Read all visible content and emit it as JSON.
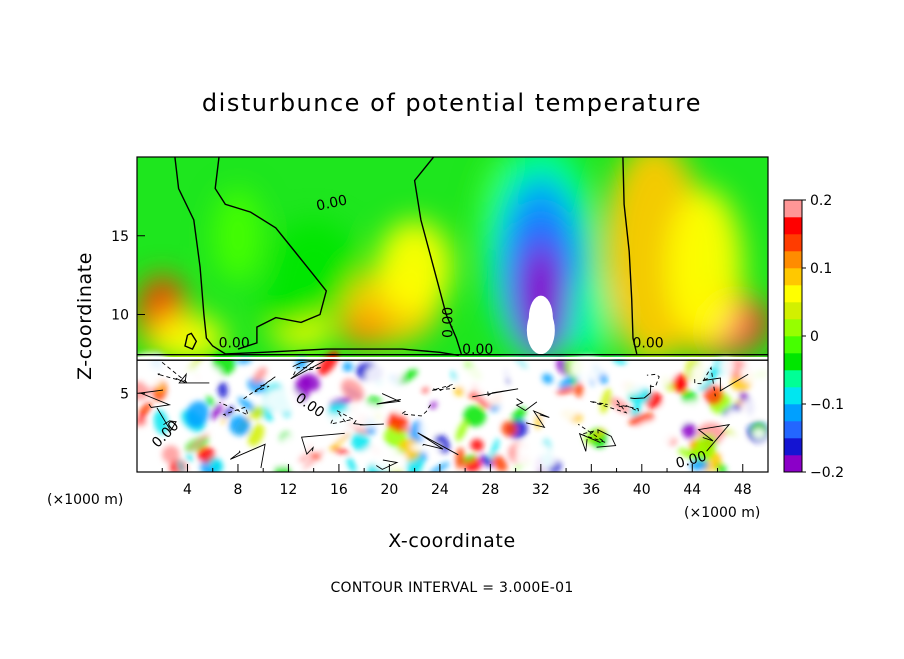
{
  "chart_data": {
    "type": "heatmap",
    "title": "disturbunce of potential temperature",
    "xlabel": "X-coordinate",
    "ylabel": "Z-coordinate",
    "x_unit": "(×1000 m)",
    "z_unit": "(×1000 m)",
    "xlim": [
      0,
      50
    ],
    "ylim": [
      0,
      20
    ],
    "x_ticks": [
      "4",
      "8",
      "12",
      "16",
      "20",
      "24",
      "28",
      "32",
      "36",
      "40",
      "44",
      "48"
    ],
    "y_ticks": [
      "5",
      "10",
      "15"
    ],
    "interface_height": 7.3,
    "colorbar": {
      "range": [
        -0.2,
        0.2
      ],
      "ticks": [
        "0.2",
        "0.1",
        "0",
        "−0.1",
        "−0.2"
      ],
      "colors": [
        "#8b00c8",
        "#1414d2",
        "#2366ff",
        "#00a0ff",
        "#00e6f0",
        "#00ff96",
        "#00e600",
        "#46ff00",
        "#96ff00",
        "#d2f000",
        "#ffff00",
        "#ffc800",
        "#ff8c00",
        "#ff3c00",
        "#ff0000",
        "#ff9696"
      ]
    },
    "contour_interval": "CONTOUR INTERVAL = 3.000E-01",
    "contour_labels": [
      "0.00",
      "0.00",
      "0.00",
      "0.00",
      "0.00",
      "0.00",
      "0.00",
      "0.00"
    ],
    "upper_features": [
      {
        "kind": "cold_plume",
        "x_center": 32,
        "z_top": 20,
        "peak": -0.2
      },
      {
        "kind": "warm_region",
        "x_center": 47,
        "z_center": 9,
        "peak": 0.15
      },
      {
        "kind": "warm_edge",
        "x_center": 0.5,
        "z_center": 9,
        "peak": 0.18
      },
      {
        "kind": "warm_region",
        "x_center": 20,
        "z_center": 10,
        "peak": 0.08
      }
    ]
  }
}
